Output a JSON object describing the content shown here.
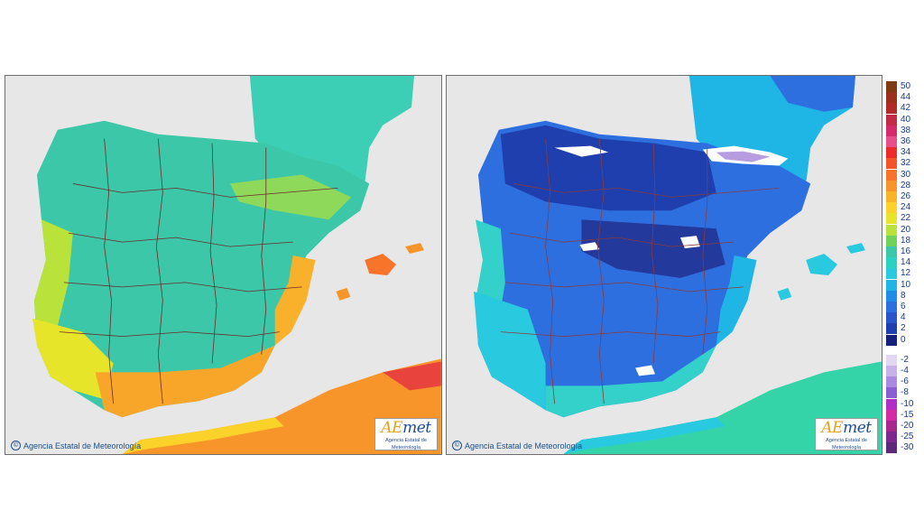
{
  "maps": [
    {
      "id": "left",
      "credit": "Agencia Estatal de Meteorología",
      "logo": {
        "word_a": "AE",
        "word_b": "met",
        "subtitle": "Agencia Estatal de Meteorología"
      },
      "palette": {
        "sea": "#29d3c0",
        "land": "#3cc8a8",
        "coast": "#b8e23a",
        "south": "#f5a623",
        "north_africa": "#f78f1e",
        "hot": "#e82c2c"
      }
    },
    {
      "id": "right",
      "credit": "Agencia Estatal de Meteorología",
      "logo": {
        "word_a": "AE",
        "word_b": "met",
        "subtitle": "Agencia Estatal de Meteorología"
      },
      "palette": {
        "sea": "#1fb6e6",
        "land": "#2e6fe0",
        "deep": "#1f3fae",
        "coast": "#33d1c9",
        "north_africa": "#34d3a8",
        "snow": "#ffffff",
        "frost": "#b79ce0"
      }
    }
  ],
  "legend": {
    "positive": [
      {
        "label": "50",
        "color": "#7f3a12"
      },
      {
        "label": "44",
        "color": "#9b2f1e"
      },
      {
        "label": "42",
        "color": "#b02a2a"
      },
      {
        "label": "40",
        "color": "#c22a46"
      },
      {
        "label": "38",
        "color": "#d42b6b"
      },
      {
        "label": "36",
        "color": "#e84f8a"
      },
      {
        "label": "34",
        "color": "#ef2a2a"
      },
      {
        "label": "32",
        "color": "#f4542a"
      },
      {
        "label": "30",
        "color": "#f7742a"
      },
      {
        "label": "28",
        "color": "#f8952a"
      },
      {
        "label": "26",
        "color": "#fab42a"
      },
      {
        "label": "24",
        "color": "#fbd22a"
      },
      {
        "label": "22",
        "color": "#e6e52a"
      },
      {
        "label": "20",
        "color": "#b9e23a"
      },
      {
        "label": "18",
        "color": "#6fd25a"
      },
      {
        "label": "16",
        "color": "#3cc8a8"
      },
      {
        "label": "14",
        "color": "#29d3c0"
      },
      {
        "label": "12",
        "color": "#29c9e0"
      },
      {
        "label": "10",
        "color": "#1fb6e6"
      },
      {
        "label": "8",
        "color": "#1f8de8"
      },
      {
        "label": "6",
        "color": "#2e6fe0"
      },
      {
        "label": "4",
        "color": "#2a55c8"
      },
      {
        "label": "2",
        "color": "#1f3fae"
      },
      {
        "label": "0",
        "color": "#14207a"
      }
    ],
    "negative": [
      {
        "label": "-2",
        "color": "#e4d6f2"
      },
      {
        "label": "-4",
        "color": "#c9b2ea"
      },
      {
        "label": "-6",
        "color": "#a98ade"
      },
      {
        "label": "-8",
        "color": "#8a5fd2"
      },
      {
        "label": "-10",
        "color": "#b12fc4"
      },
      {
        "label": "-15",
        "color": "#d62aa4"
      },
      {
        "label": "-20",
        "color": "#a8288e"
      },
      {
        "label": "-25",
        "color": "#7d2a8e"
      },
      {
        "label": "-30",
        "color": "#5b2a7a"
      }
    ]
  }
}
